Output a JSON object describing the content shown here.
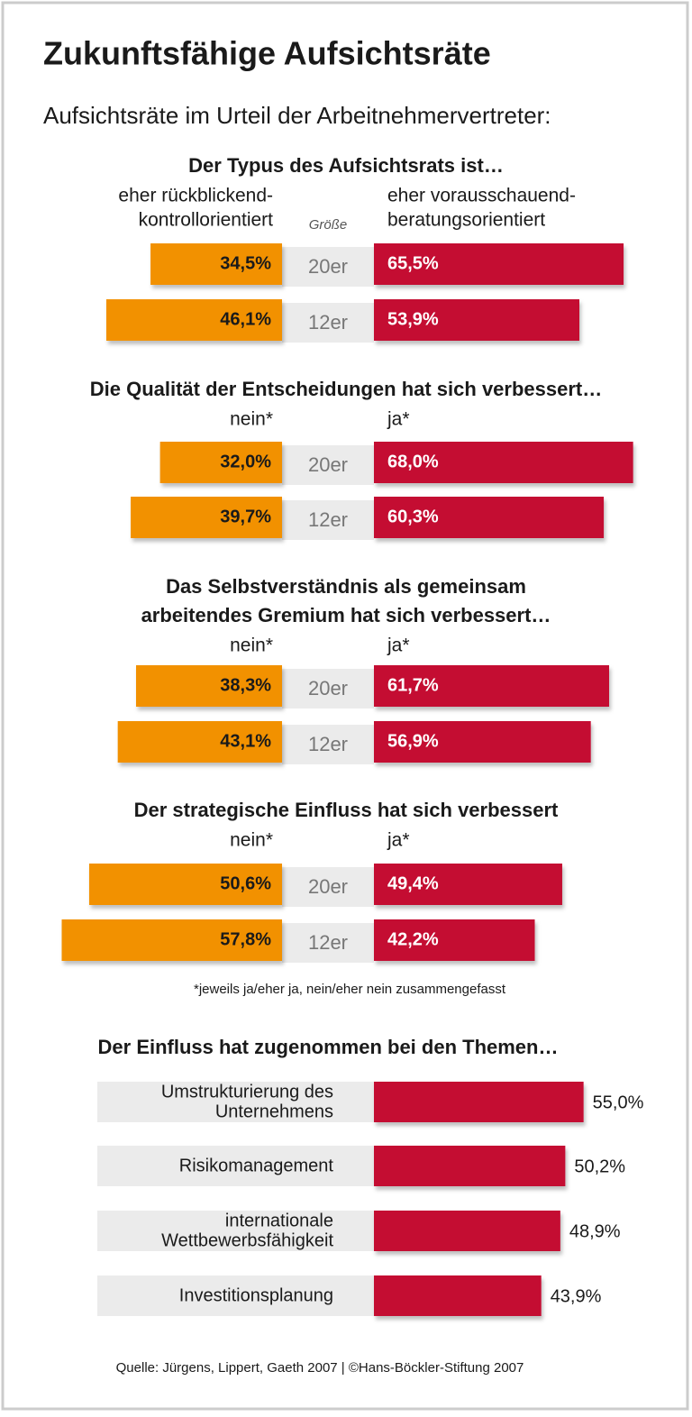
{
  "title": "Zukunftsfähige Aufsichtsräte",
  "subtitle": "Aufsichtsräte im Urteil der Arbeitnehmervertreter:",
  "footnote": "*jeweils ja/eher ja, nein/eher nein zusammengefasst",
  "source": "Quelle: Jürgens, Lippert, Gaeth 2007 | ©Hans-Böckler-Stiftung 2007",
  "chart_data": [
    {
      "type": "diverging_bar",
      "title": [
        "Der Typus des Aufsichtsrats ist…"
      ],
      "category_header": "Größe",
      "categories": [
        "20er",
        "12er"
      ],
      "series": [
        {
          "name": [
            "eher rückblickend-",
            "kontrollorientiert"
          ],
          "color": "#f29100",
          "values": [
            34.5,
            46.1
          ],
          "value_labels": [
            "34,5%",
            "46,1%"
          ]
        },
        {
          "name": [
            "eher vorausschauend-",
            "beratungsorientiert"
          ],
          "color": "#c40a30",
          "values": [
            65.5,
            53.9
          ],
          "value_labels": [
            "65,5%",
            "53,9%"
          ]
        }
      ]
    },
    {
      "type": "diverging_bar",
      "title": [
        "Die Qualität der Entscheidungen hat sich verbessert…"
      ],
      "categories": [
        "20er",
        "12er"
      ],
      "series": [
        {
          "name": [
            "nein*"
          ],
          "color": "#f29100",
          "values": [
            32.0,
            39.7
          ],
          "value_labels": [
            "32,0%",
            "39,7%"
          ]
        },
        {
          "name": [
            "ja*"
          ],
          "color": "#c40a30",
          "values": [
            68.0,
            60.3
          ],
          "value_labels": [
            "68,0%",
            "60,3%"
          ]
        }
      ]
    },
    {
      "type": "diverging_bar",
      "title": [
        "Das Selbstverständnis als gemeinsam",
        "arbeitendes Gremium hat sich verbessert…"
      ],
      "categories": [
        "20er",
        "12er"
      ],
      "series": [
        {
          "name": [
            "nein*"
          ],
          "color": "#f29100",
          "values": [
            38.3,
            43.1
          ],
          "value_labels": [
            "38,3%",
            "43,1%"
          ]
        },
        {
          "name": [
            "ja*"
          ],
          "color": "#c40a30",
          "values": [
            61.7,
            56.9
          ],
          "value_labels": [
            "61,7%",
            "56,9%"
          ]
        }
      ]
    },
    {
      "type": "diverging_bar",
      "title": [
        "Der strategische Einfluss hat sich verbessert"
      ],
      "categories": [
        "20er",
        "12er"
      ],
      "series": [
        {
          "name": [
            "nein*"
          ],
          "color": "#f29100",
          "values": [
            50.6,
            57.8
          ],
          "value_labels": [
            "50,6%",
            "57,8%"
          ]
        },
        {
          "name": [
            "ja*"
          ],
          "color": "#c40a30",
          "values": [
            49.4,
            42.2
          ],
          "value_labels": [
            "49,4%",
            "42,2%"
          ]
        }
      ]
    },
    {
      "type": "bar",
      "title": [
        "Der Einfluss hat zugenommen bei den Themen…"
      ],
      "categories": [
        [
          "Umstrukturierung des",
          "Unternehmens"
        ],
        [
          "Risikomanagement"
        ],
        [
          "internationale",
          "Wettbewerbsfähigkeit"
        ],
        [
          "Investitionsplanung"
        ]
      ],
      "color": "#c40a30",
      "values": [
        55.0,
        50.2,
        48.9,
        43.9
      ],
      "value_labels": [
        "55,0%",
        "50,2%",
        "48,9%",
        "43,9%"
      ]
    }
  ]
}
